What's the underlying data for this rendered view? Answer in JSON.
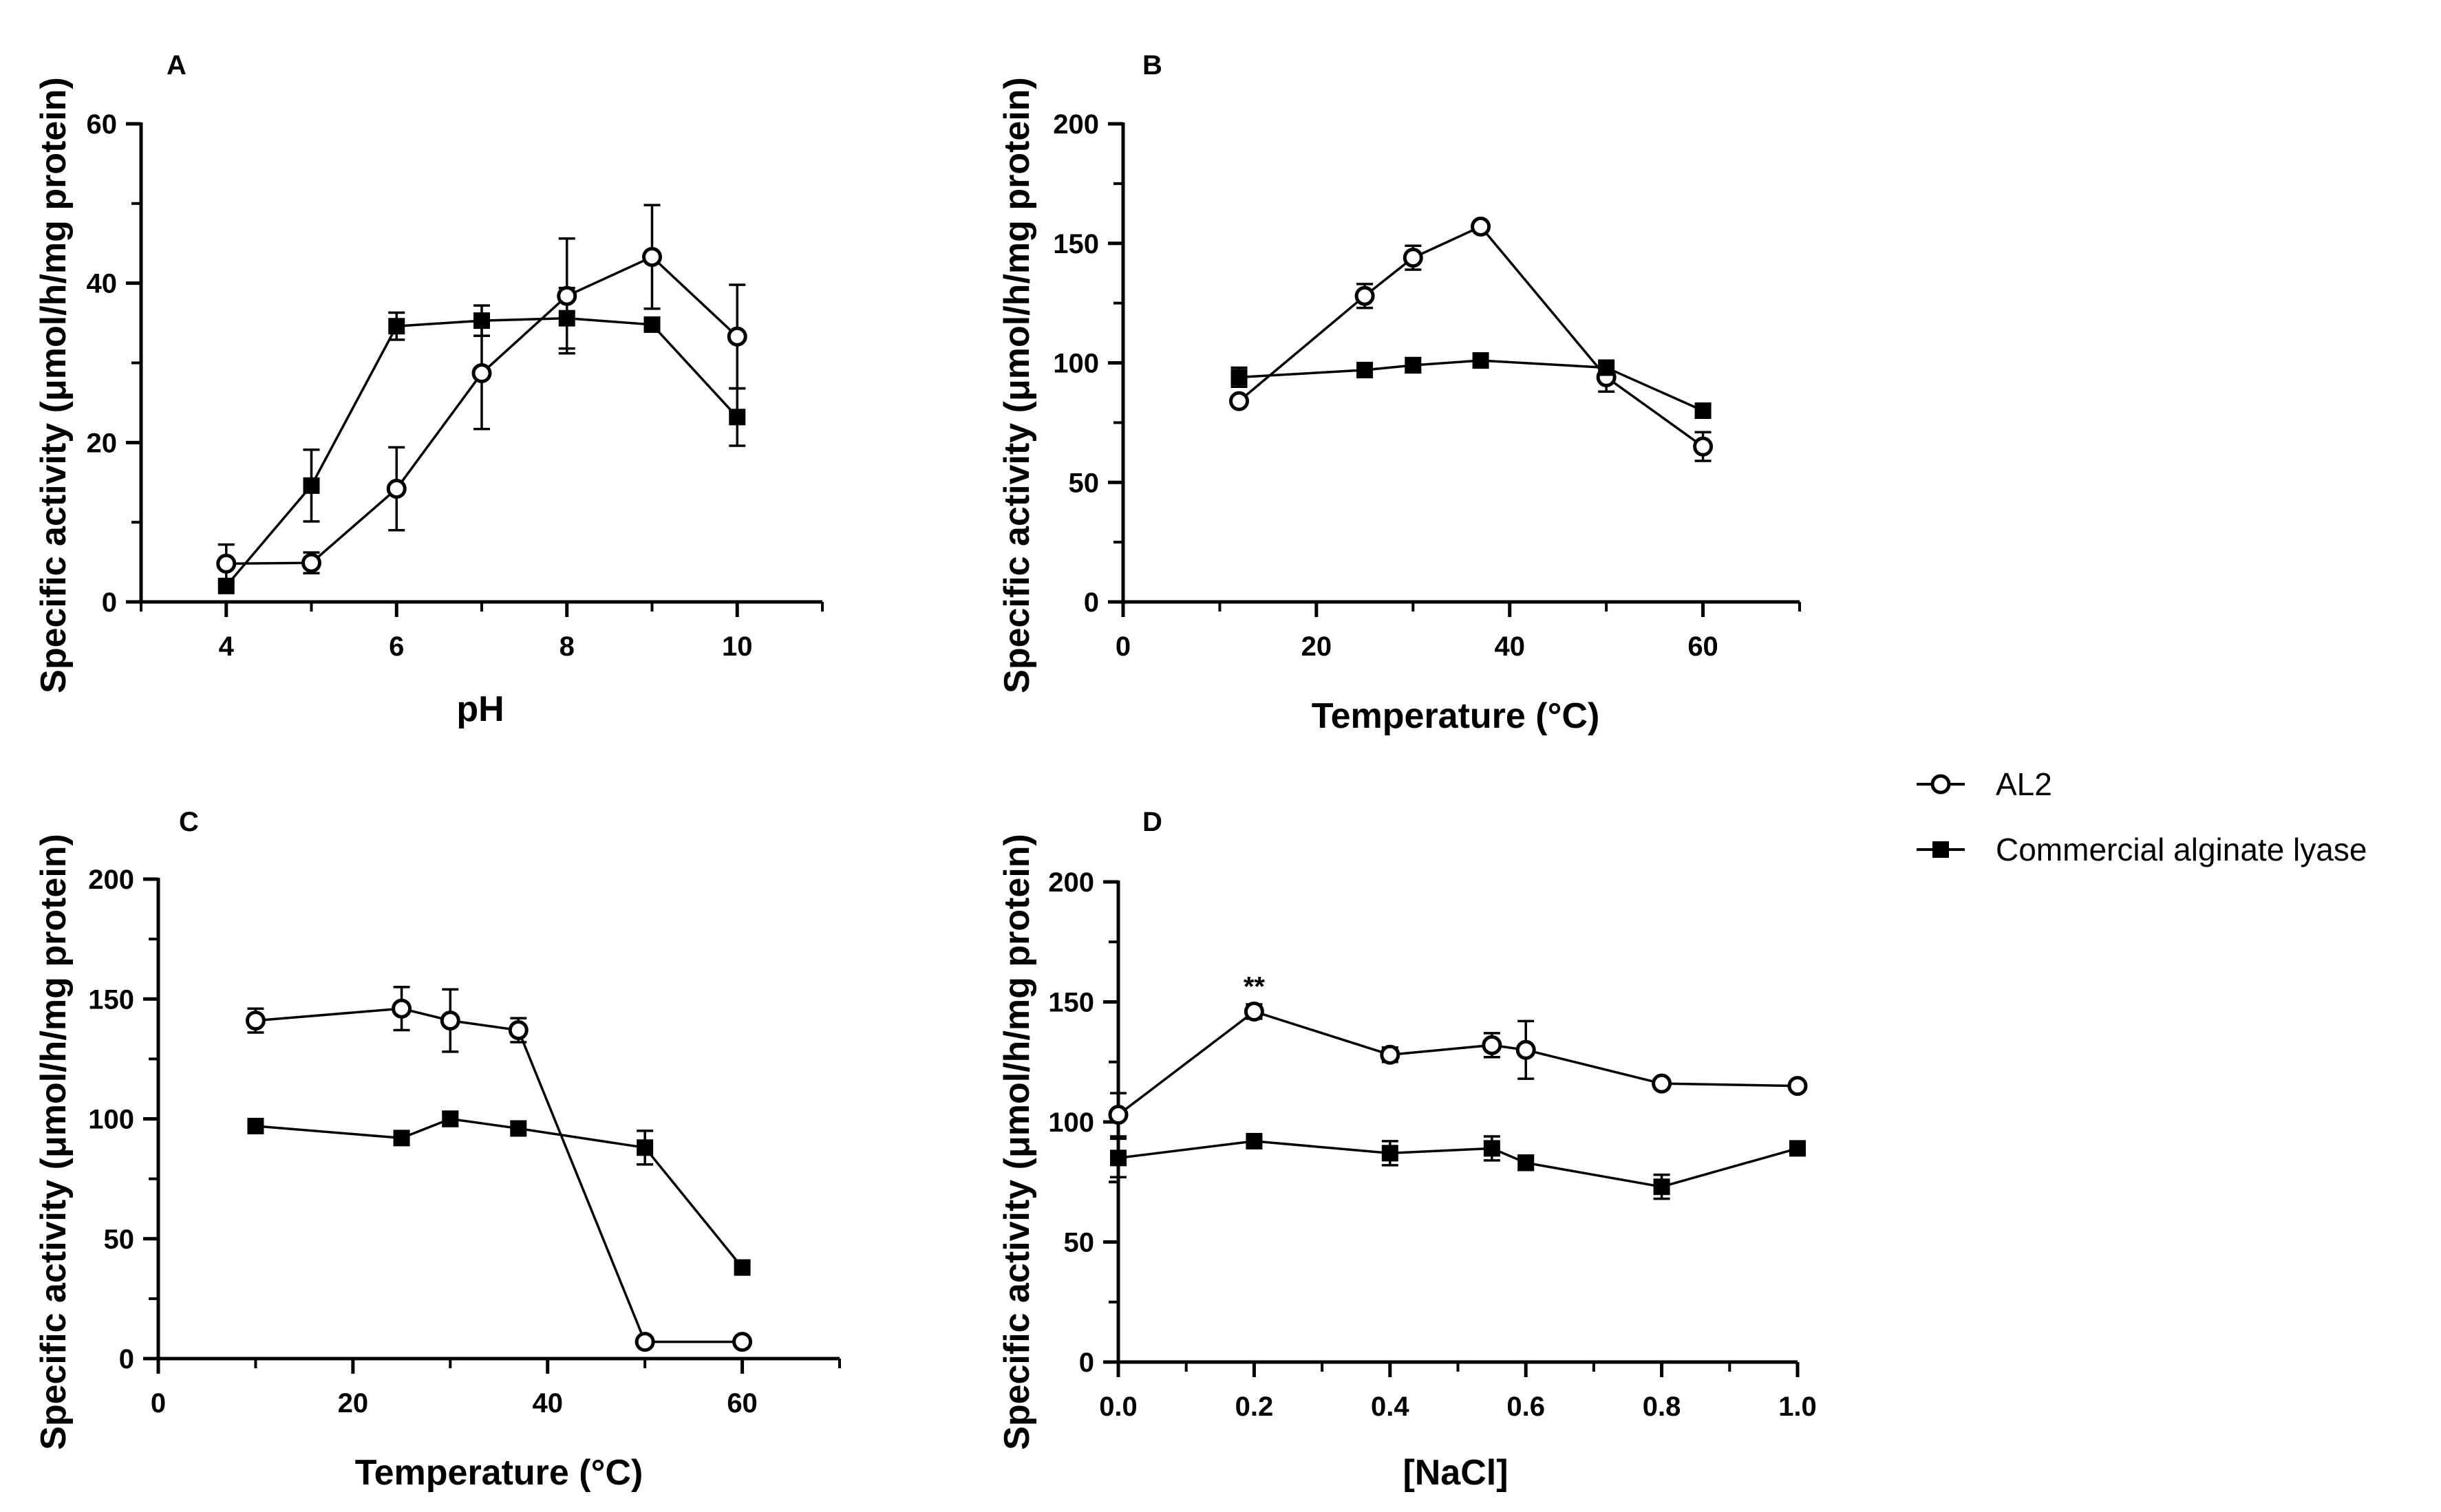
{
  "legend": {
    "al2": "AL2",
    "commercial": "Commercial alginate lyase"
  },
  "chart_data": [
    {
      "panel": "A",
      "type": "line",
      "xlabel": "pH",
      "ylabel": "Specific activity (μmol/h/mg protein)",
      "xlim": [
        3,
        11
      ],
      "ylim": [
        0,
        60
      ],
      "xticks": [
        4,
        6,
        8,
        10
      ],
      "xtick_labels": [
        "4",
        "6",
        "8",
        "10"
      ],
      "yticks": [
        0,
        20,
        40,
        60
      ],
      "ytick_labels": [
        "0",
        "20",
        "40",
        "60"
      ],
      "series": [
        {
          "name": "AL2",
          "marker": "open-circle",
          "x": [
            4,
            5,
            6,
            7,
            8,
            9,
            10
          ],
          "y": [
            4.8,
            4.9,
            14.2,
            28.7,
            38.4,
            43.3,
            33.3
          ],
          "err": [
            2.4,
            1.3,
            5.2,
            7.0,
            7.2,
            6.5,
            6.5
          ]
        },
        {
          "name": "Commercial alginate lyase",
          "marker": "filled-square",
          "x": [
            4,
            5,
            6,
            7,
            8,
            9,
            10
          ],
          "y": [
            2.0,
            14.6,
            34.6,
            35.3,
            35.6,
            34.8,
            23.2
          ],
          "err": [
            0,
            4.5,
            1.7,
            1.9,
            3.8,
            0,
            3.6
          ]
        }
      ],
      "annotations": []
    },
    {
      "panel": "B",
      "type": "line",
      "xlabel": "Temperature (°C)",
      "ylabel": "Specific activity (μmol/h/mg protein)",
      "xlim": [
        0,
        70
      ],
      "ylim": [
        0,
        200
      ],
      "xticks": [
        0,
        20,
        40,
        60
      ],
      "xtick_labels": [
        "0",
        "20",
        "40",
        "60"
      ],
      "yticks": [
        0,
        50,
        100,
        150,
        200
      ],
      "ytick_labels": [
        "0",
        "50",
        "100",
        "150",
        "200"
      ],
      "series": [
        {
          "name": "AL2",
          "marker": "open-circle",
          "x": [
            12,
            25,
            30,
            37,
            50,
            60
          ],
          "y": [
            84,
            128,
            144,
            157,
            94,
            65
          ],
          "err": [
            0,
            5,
            5,
            0,
            6,
            6
          ]
        },
        {
          "name": "Commercial alginate lyase",
          "marker": "filled-square",
          "x": [
            12,
            25,
            30,
            37,
            50,
            60
          ],
          "y": [
            94,
            97,
            99,
            101,
            98,
            80
          ],
          "err": [
            4,
            0,
            3,
            0,
            0,
            0
          ]
        }
      ],
      "annotations": []
    },
    {
      "panel": "C",
      "type": "line",
      "xlabel": "Temperature (°C)",
      "ylabel": "Specific activity (μmol/h/mg protein)",
      "xlim": [
        0,
        70
      ],
      "ylim": [
        0,
        200
      ],
      "xticks": [
        0,
        20,
        40,
        60
      ],
      "xtick_labels": [
        "0",
        "20",
        "40",
        "60"
      ],
      "yticks": [
        0,
        50,
        100,
        150,
        200
      ],
      "ytick_labels": [
        "0",
        "50",
        "100",
        "150",
        "200"
      ],
      "series": [
        {
          "name": "AL2",
          "marker": "open-circle",
          "x": [
            10,
            25,
            30,
            37,
            50,
            60
          ],
          "y": [
            141,
            146,
            141,
            137,
            7,
            7
          ],
          "err": [
            5,
            9,
            13,
            5,
            0,
            0
          ]
        },
        {
          "name": "Commercial alginate lyase",
          "marker": "filled-square",
          "x": [
            10,
            25,
            30,
            37,
            50,
            60
          ],
          "y": [
            97,
            92,
            100,
            96,
            88,
            38
          ],
          "err": [
            0,
            0,
            3,
            0,
            7,
            0
          ]
        }
      ],
      "annotations": []
    },
    {
      "panel": "D",
      "type": "line",
      "xlabel": "[NaCl]",
      "ylabel": "Specific activity (μmol/h/mg protein)",
      "xlim": [
        0,
        1.0
      ],
      "ylim": [
        0,
        200
      ],
      "xticks": [
        0,
        0.2,
        0.4,
        0.6,
        0.8,
        1.0
      ],
      "xtick_labels": [
        "0.0",
        "0.2",
        "0.4",
        "0.6",
        "0.8",
        "1.0"
      ],
      "yticks": [
        0,
        50,
        100,
        150,
        200
      ],
      "ytick_labels": [
        "0",
        "50",
        "100",
        "150",
        "200"
      ],
      "series": [
        {
          "name": "AL2",
          "marker": "open-circle",
          "x": [
            0,
            0.2,
            0.4,
            0.55,
            0.6,
            0.8,
            1.0
          ],
          "y": [
            103,
            146,
            128,
            132,
            130,
            116,
            115
          ],
          "err": [
            9,
            3,
            3,
            5,
            12,
            0,
            0
          ]
        },
        {
          "name": "Commercial alginate lyase",
          "marker": "filled-square",
          "x": [
            0,
            0.2,
            0.4,
            0.55,
            0.6,
            0.8,
            1.0
          ],
          "y": [
            85,
            92,
            87,
            89,
            83,
            73,
            89
          ],
          "err": [
            8,
            0,
            5,
            5,
            3,
            5,
            0
          ]
        }
      ],
      "annotations": [
        {
          "text": "**",
          "x": 0.2,
          "y": 156
        }
      ]
    }
  ]
}
